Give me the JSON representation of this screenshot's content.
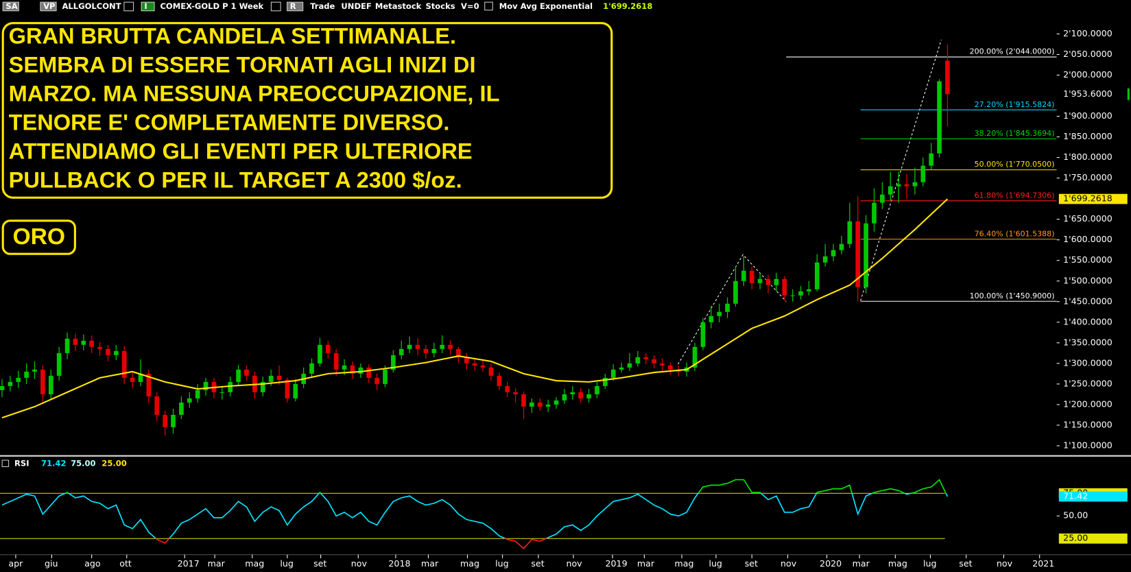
{
  "chart_data": {
    "type": "candlestick",
    "toolbar": [
      "SA",
      "VP",
      "ALLGOLCONT",
      "I",
      "COMEX-GOLD P",
      "1 Week",
      "R",
      "Trade",
      "UNDEF",
      "Metastock",
      "Stocks",
      "V=0"
    ],
    "annotation": [
      "GRAN BRUTTA CANDELA SETTIMANALE.",
      "SEMBRA DI ESSERE TORNATI AGLI INIZI DI",
      "MARZO. MA NESSUNA PREOCCUPAZIONE, IL",
      "TENORE E' COMPLETAMENTE DIVERSO.",
      "ATTENDIAMO GLI EVENTI PER ULTERIORE",
      "PULLBACK O PER IL TARGET A 2300 $/oz."
    ],
    "label": "ORO",
    "xlim": [
      -0.25,
      129.4
    ],
    "xticks": [
      {
        "value": 1.68,
        "label": "apr"
      },
      {
        "value": 6.1,
        "label": "giu"
      },
      {
        "value": 11.0,
        "label": "ago"
      },
      {
        "value": 15.3,
        "label": "ott"
      },
      {
        "value": 22.4,
        "label": "2017"
      },
      {
        "value": 26.1,
        "label": "mar"
      },
      {
        "value": 30.7,
        "label": "mag"
      },
      {
        "value": 35.0,
        "label": "lug"
      },
      {
        "value": 39.1,
        "label": "set"
      },
      {
        "value": 43.7,
        "label": "nov"
      },
      {
        "value": 48.3,
        "label": "2018"
      },
      {
        "value": 52.3,
        "label": "mar"
      },
      {
        "value": 57.1,
        "label": "mag"
      },
      {
        "value": 61.4,
        "label": "lug"
      },
      {
        "value": 65.8,
        "label": "set"
      },
      {
        "value": 70.1,
        "label": "nov"
      },
      {
        "value": 74.9,
        "label": "2019"
      },
      {
        "value": 78.8,
        "label": "mar"
      },
      {
        "value": 83.4,
        "label": "mag"
      },
      {
        "value": 87.6,
        "label": "lug"
      },
      {
        "value": 92.0,
        "label": "set"
      },
      {
        "value": 96.4,
        "label": "nov"
      },
      {
        "value": 101.2,
        "label": "2020"
      },
      {
        "value": 105.2,
        "label": "mar"
      },
      {
        "value": 109.6,
        "label": "mag"
      },
      {
        "value": 113.9,
        "label": "lug"
      },
      {
        "value": 118.3,
        "label": "set"
      },
      {
        "value": 122.9,
        "label": "nov"
      },
      {
        "value": 127.3,
        "label": "2021"
      }
    ],
    "ylim": [
      1079,
      2147.3
    ],
    "yticks": [
      {
        "value": 2100,
        "label": "2'100.0000"
      },
      {
        "value": 2050,
        "label": "2'050.0000"
      },
      {
        "value": 2000,
        "label": "2'000.0000"
      },
      {
        "value": 1900,
        "label": "1'900.0000"
      },
      {
        "value": 1850,
        "label": "1'850.0000"
      },
      {
        "value": 1800,
        "label": "1'800.0000"
      },
      {
        "value": 1750,
        "label": "1'750.0000"
      },
      {
        "value": 1650,
        "label": "1'650.0000"
      },
      {
        "value": 1600,
        "label": "1'600.0000"
      },
      {
        "value": 1550,
        "label": "1'550.0000"
      },
      {
        "value": 1500,
        "label": "1'500.0000"
      },
      {
        "value": 1450,
        "label": "1'450.0000"
      },
      {
        "value": 1400,
        "label": "1'400.0000"
      },
      {
        "value": 1350,
        "label": "1'350.0000"
      },
      {
        "value": 1300,
        "label": "1'300.0000"
      },
      {
        "value": 1250,
        "label": "1'250.0000"
      },
      {
        "value": 1200,
        "label": "1'200.0000"
      },
      {
        "value": 1150,
        "label": "1'150.0000"
      },
      {
        "value": 1100,
        "label": "1'100.0000"
      }
    ],
    "up_color": "#00c800",
    "down_color": "#e60000",
    "open": [
      1235,
      1245,
      1255,
      1265,
      1280,
      1285,
      1225,
      1270,
      1325,
      1360,
      1345,
      1355,
      1340,
      1335,
      1320,
      1330,
      1265,
      1255,
      1275,
      1220,
      1175,
      1145,
      1175,
      1205,
      1215,
      1235,
      1255,
      1230,
      1230,
      1255,
      1285,
      1270,
      1230,
      1255,
      1270,
      1260,
      1215,
      1250,
      1275,
      1300,
      1345,
      1325,
      1285,
      1295,
      1275,
      1290,
      1265,
      1250,
      1285,
      1320,
      1335,
      1345,
      1335,
      1325,
      1335,
      1345,
      1335,
      1315,
      1300,
      1295,
      1290,
      1270,
      1245,
      1230,
      1225,
      1195,
      1205,
      1195,
      1200,
      1210,
      1225,
      1230,
      1215,
      1225,
      1245,
      1265,
      1285,
      1290,
      1300,
      1315,
      1310,
      1300,
      1295,
      1285,
      1280,
      1290,
      1340,
      1400,
      1415,
      1425,
      1445,
      1500,
      1525,
      1495,
      1505,
      1490,
      1505,
      1465,
      1465,
      1475,
      1480,
      1545,
      1560,
      1575,
      1590,
      1645,
      1485,
      1640,
      1690,
      1710,
      1730,
      1735,
      1730,
      1740,
      1780,
      1810,
      2035
    ],
    "high": [
      1262,
      1270,
      1282,
      1300,
      1305,
      1296,
      1285,
      1340,
      1375,
      1372,
      1370,
      1368,
      1352,
      1345,
      1345,
      1342,
      1280,
      1310,
      1285,
      1230,
      1185,
      1190,
      1220,
      1230,
      1250,
      1265,
      1265,
      1245,
      1268,
      1296,
      1295,
      1280,
      1268,
      1285,
      1295,
      1265,
      1262,
      1290,
      1312,
      1362,
      1355,
      1335,
      1310,
      1305,
      1300,
      1298,
      1275,
      1295,
      1332,
      1355,
      1365,
      1362,
      1345,
      1350,
      1368,
      1356,
      1340,
      1325,
      1310,
      1308,
      1300,
      1278,
      1255,
      1240,
      1232,
      1215,
      1215,
      1212,
      1218,
      1238,
      1245,
      1240,
      1238,
      1255,
      1275,
      1298,
      1302,
      1325,
      1330,
      1325,
      1320,
      1312,
      1302,
      1295,
      1302,
      1350,
      1410,
      1440,
      1445,
      1460,
      1535,
      1560,
      1535,
      1520,
      1515,
      1520,
      1512,
      1480,
      1488,
      1500,
      1565,
      1590,
      1590,
      1610,
      1690,
      1705,
      1660,
      1725,
      1740,
      1765,
      1765,
      1760,
      1775,
      1800,
      1835,
      1990,
      2075
    ],
    "low": [
      1218,
      1232,
      1240,
      1250,
      1262,
      1205,
      1212,
      1258,
      1310,
      1330,
      1332,
      1325,
      1318,
      1305,
      1308,
      1250,
      1240,
      1245,
      1205,
      1160,
      1125,
      1130,
      1165,
      1192,
      1205,
      1222,
      1215,
      1212,
      1220,
      1245,
      1258,
      1215,
      1220,
      1245,
      1248,
      1205,
      1208,
      1240,
      1265,
      1292,
      1312,
      1270,
      1272,
      1262,
      1265,
      1252,
      1235,
      1242,
      1278,
      1310,
      1325,
      1320,
      1312,
      1315,
      1325,
      1322,
      1302,
      1285,
      1282,
      1280,
      1258,
      1235,
      1218,
      1205,
      1165,
      1180,
      1185,
      1182,
      1190,
      1202,
      1212,
      1205,
      1205,
      1215,
      1238,
      1258,
      1278,
      1282,
      1292,
      1298,
      1288,
      1280,
      1272,
      1268,
      1268,
      1282,
      1332,
      1385,
      1400,
      1410,
      1438,
      1488,
      1480,
      1480,
      1470,
      1475,
      1452,
      1450,
      1455,
      1465,
      1475,
      1535,
      1548,
      1565,
      1580,
      1451,
      1470,
      1620,
      1675,
      1695,
      1690,
      1700,
      1710,
      1730,
      1770,
      1800,
      1875
    ],
    "close": [
      1245,
      1255,
      1265,
      1280,
      1285,
      1225,
      1270,
      1325,
      1360,
      1345,
      1355,
      1340,
      1335,
      1320,
      1330,
      1265,
      1255,
      1275,
      1220,
      1175,
      1145,
      1175,
      1205,
      1215,
      1235,
      1255,
      1230,
      1230,
      1255,
      1285,
      1270,
      1230,
      1255,
      1270,
      1260,
      1215,
      1250,
      1275,
      1300,
      1345,
      1325,
      1285,
      1295,
      1275,
      1290,
      1265,
      1250,
      1285,
      1320,
      1335,
      1345,
      1335,
      1325,
      1335,
      1345,
      1335,
      1315,
      1300,
      1295,
      1290,
      1270,
      1245,
      1230,
      1225,
      1195,
      1205,
      1195,
      1200,
      1210,
      1225,
      1230,
      1215,
      1225,
      1245,
      1265,
      1285,
      1290,
      1300,
      1315,
      1310,
      1300,
      1295,
      1285,
      1280,
      1290,
      1340,
      1400,
      1415,
      1425,
      1445,
      1500,
      1525,
      1495,
      1505,
      1490,
      1505,
      1465,
      1465,
      1475,
      1480,
      1545,
      1560,
      1575,
      1590,
      1645,
      1485,
      1640,
      1690,
      1710,
      1730,
      1735,
      1730,
      1740,
      1780,
      1810,
      1985,
      1953.6
    ],
    "last_price": {
      "value": 1953.6,
      "label": "1'953.6000"
    },
    "ma": {
      "name": "Mov Avg Exponential",
      "color": "#ffe600",
      "x": [
        0,
        4,
        8,
        12,
        16,
        20,
        24,
        28,
        32,
        36,
        40,
        44,
        48,
        52,
        56,
        60,
        64,
        68,
        72,
        76,
        80,
        84,
        88,
        92,
        96,
        100,
        104,
        108,
        112,
        116
      ],
      "values": [
        1168,
        1195,
        1230,
        1265,
        1280,
        1255,
        1238,
        1245,
        1250,
        1258,
        1275,
        1280,
        1290,
        1302,
        1318,
        1305,
        1275,
        1258,
        1255,
        1265,
        1278,
        1285,
        1335,
        1385,
        1415,
        1455,
        1490,
        1555,
        1625,
        1699.2618
      ],
      "last_label": "1'699.2618"
    },
    "fib_levels": [
      {
        "value": 2044,
        "label": "200.00% (2'044.0000)",
        "color": "#ffffff"
      },
      {
        "value": 1915.5824,
        "label": "27.20% (1'915.5824)",
        "color": "#00d8ff"
      },
      {
        "value": 1845.3694,
        "label": "38.20% (1'845.3694)",
        "color": "#00d800"
      },
      {
        "value": 1770.05,
        "label": "50.00% (1'770.0500)",
        "color": "#ffe600"
      },
      {
        "value": 1694.7306,
        "label": "61.80% (1'694.7306)",
        "color": "#ff2020"
      },
      {
        "value": 1601.5388,
        "label": "76.40% (1'601.5388)",
        "color": "#ff9a20"
      },
      {
        "value": 1450.9,
        "label": "100.00% (1'450.9000)",
        "color": "#ffffff"
      }
    ],
    "rsi": {
      "name": "RSI",
      "color": "#00e5ff",
      "over_color": "#00e600",
      "under_color": "#ff1a1a",
      "ylim": [
        8,
        102
      ],
      "yticks": [
        {
          "value": 50,
          "label": "50.00"
        }
      ],
      "levels": [
        {
          "value": 75,
          "label": "75.00"
        },
        {
          "value": 25,
          "label": "25.00"
        }
      ],
      "level_color": "#e6e600",
      "values": [
        62,
        66,
        70,
        74,
        72,
        52,
        62,
        72,
        76,
        70,
        72,
        66,
        64,
        58,
        62,
        40,
        36,
        46,
        32,
        24,
        20,
        30,
        42,
        46,
        52,
        58,
        48,
        48,
        56,
        66,
        60,
        44,
        54,
        60,
        56,
        40,
        52,
        60,
        66,
        76,
        66,
        50,
        54,
        48,
        54,
        44,
        40,
        54,
        66,
        70,
        72,
        66,
        62,
        64,
        68,
        62,
        52,
        46,
        44,
        42,
        36,
        28,
        24,
        22,
        14,
        24,
        22,
        26,
        30,
        38,
        40,
        34,
        40,
        50,
        58,
        66,
        68,
        70,
        74,
        68,
        62,
        58,
        52,
        50,
        54,
        70,
        82,
        84,
        84,
        86,
        90,
        90,
        76,
        76,
        68,
        72,
        54,
        54,
        58,
        60,
        76,
        78,
        80,
        80,
        84,
        52,
        72,
        76,
        78,
        80,
        78,
        74,
        76,
        80,
        82,
        90,
        71.42
      ],
      "last_label": "71.42"
    }
  }
}
